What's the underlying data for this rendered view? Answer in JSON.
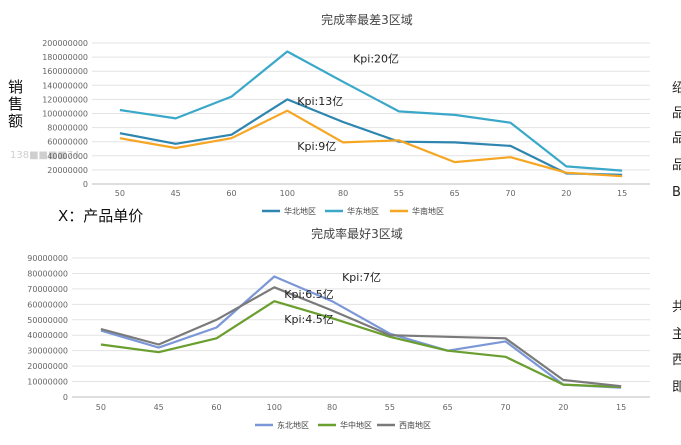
{
  "left_labels": {
    "y_axis": "销售额",
    "x_axis": "X：产品单价"
  },
  "watermark": "138■■■■74",
  "right_edge_glyphs": {
    "top": [
      "绍",
      "品",
      "品",
      "品",
      "B"
    ],
    "bottom": [
      "共",
      "主",
      "西",
      "即"
    ]
  },
  "chart_data": [
    {
      "type": "line",
      "title": "完成率最差3区域",
      "categories": [
        "50",
        "45",
        "60",
        "100",
        "80",
        "55",
        "65",
        "70",
        "20",
        "15"
      ],
      "ylim": [
        0,
        200000000
      ],
      "yticks": [
        "0",
        "20000000",
        "40000000",
        "60000000",
        "80000000",
        "100000000",
        "120000000",
        "140000000",
        "160000000",
        "180000000",
        "200000000"
      ],
      "grid": true,
      "legend": "bottom",
      "series": [
        {
          "name": "华北地区",
          "color": "#2e86b0",
          "values": [
            72000000,
            57000000,
            70000000,
            120000000,
            88000000,
            60000000,
            59000000,
            54000000,
            15000000,
            13000000
          ]
        },
        {
          "name": "华东地区",
          "color": "#3aa8c8",
          "values": [
            105000000,
            93000000,
            124000000,
            188000000,
            145000000,
            103000000,
            98000000,
            87000000,
            25000000,
            19000000
          ]
        },
        {
          "name": "华南地区",
          "color": "#f5a623",
          "values": [
            65000000,
            51000000,
            65000000,
            104000000,
            59000000,
            62000000,
            31000000,
            38000000,
            16000000,
            11000000
          ]
        }
      ],
      "annotations": [
        {
          "text": "Kpi:20亿",
          "x": "80",
          "y": 172000000
        },
        {
          "text": "Kpi:13亿",
          "x": "100",
          "y": 112000000
        },
        {
          "text": "Kpi:9亿",
          "x": "100",
          "y": 48000000
        }
      ]
    },
    {
      "type": "line",
      "title": "完成率最好3区域",
      "categories": [
        "50",
        "45",
        "60",
        "100",
        "80",
        "55",
        "65",
        "70",
        "20",
        "15"
      ],
      "ylim": [
        0,
        90000000
      ],
      "yticks": [
        "0",
        "10000000",
        "20000000",
        "30000000",
        "40000000",
        "50000000",
        "60000000",
        "70000000",
        "80000000",
        "90000000"
      ],
      "grid": true,
      "legend": "bottom",
      "series": [
        {
          "name": "东北地区",
          "color": "#7b97d8",
          "values": [
            43000000,
            32000000,
            45000000,
            78000000,
            62000000,
            41000000,
            30000000,
            36000000,
            8000000,
            6000000
          ]
        },
        {
          "name": "华中地区",
          "color": "#6a9e2f",
          "values": [
            34000000,
            29000000,
            38000000,
            62000000,
            51000000,
            39000000,
            30000000,
            26000000,
            8000000,
            6500000
          ]
        },
        {
          "name": "西南地区",
          "color": "#7a7a7a",
          "values": [
            44000000,
            34000000,
            50000000,
            71000000,
            56000000,
            40000000,
            39000000,
            38000000,
            11000000,
            7000000
          ]
        }
      ],
      "annotations": [
        {
          "text": "Kpi:7亿",
          "x": "80",
          "y": 75000000
        },
        {
          "text": "Kpi:6.5亿",
          "x": "100",
          "y": 64000000
        },
        {
          "text": "Kpi:4.5亿",
          "x": "100",
          "y": 48000000
        }
      ]
    }
  ]
}
